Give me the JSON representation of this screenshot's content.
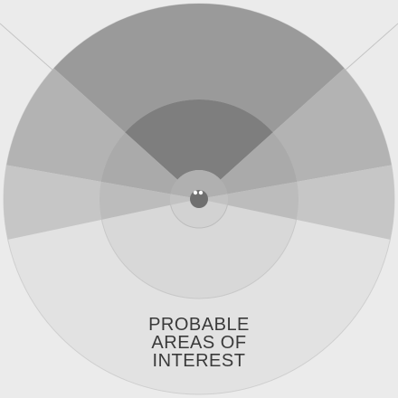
{
  "diagram": {
    "caption_lines": [
      "PROBABLE",
      "AREAS OF",
      "INTEREST"
    ]
  },
  "colors": {
    "background": "#ebebeb",
    "outer_ring": "#e2e2e2",
    "mid_ring": "#d8d8d8",
    "inner_ring": "#d2d2d2",
    "wedge_top_outer": "#9a9a9a",
    "wedge_top_mid": "#7e7e7e",
    "wedge_side_outer": "#b3b3b3",
    "wedge_side_mid": "#aaaaaa",
    "wedge_band_outer": "#c6c6c6",
    "wedge_band_mid": "#bcbcbc",
    "wedge_center": "#b0b0b0",
    "eye": "#6f6f6f",
    "line": "#c4c4c4",
    "caption": "#3a3a3a"
  }
}
